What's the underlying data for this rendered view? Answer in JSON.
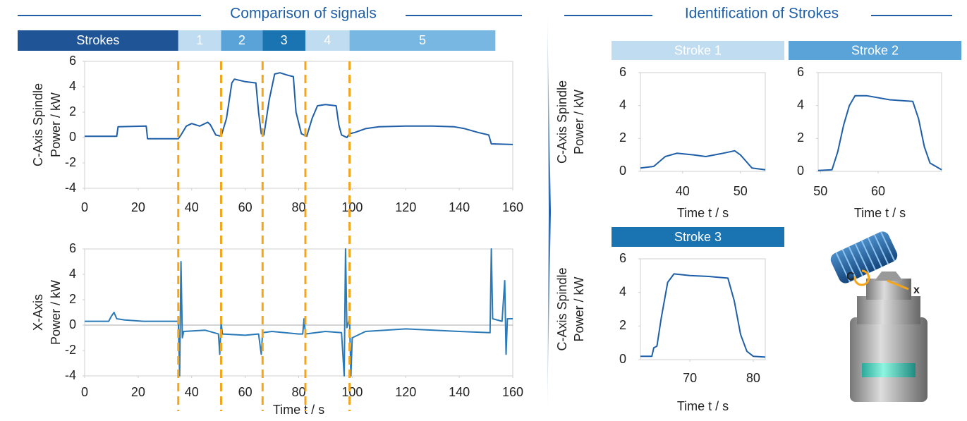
{
  "headings": [
    "Comparison of signals",
    "Identification of Strokes"
  ],
  "stroke_bar": {
    "label": "Strokes",
    "color": "#1f5597",
    "segments": [
      {
        "label": "1",
        "start": 35,
        "end": 51,
        "color": "#bfdcf1"
      },
      {
        "label": "2",
        "start": 51,
        "end": 66.5,
        "color": "#5aa3d9"
      },
      {
        "label": "3",
        "start": 66.5,
        "end": 82.5,
        "color": "#1a74b1"
      },
      {
        "label": "4",
        "start": 82.5,
        "end": 99,
        "color": "#bfdcf1"
      },
      {
        "label": "5",
        "start": 99,
        "end": 153.5,
        "color": "#78b7e2"
      }
    ]
  },
  "stroke_boundaries": {
    "values": [
      35,
      51,
      66.5,
      82.5,
      99
    ],
    "color": "#f4a51c"
  },
  "chart_data": [
    {
      "type": "line",
      "ylabel": [
        "C-Axis Spindle",
        "Power / kW"
      ],
      "xlim": [
        0,
        160
      ],
      "ylim": [
        -4,
        6
      ],
      "xticks": [
        0,
        20,
        40,
        60,
        80,
        100,
        120,
        140,
        160
      ],
      "yticks": [
        -4,
        -2,
        0,
        2,
        4,
        6
      ],
      "color": "#1f5fa8",
      "x": [
        0,
        12,
        12.5,
        23,
        23.5,
        35,
        36,
        38,
        40,
        43,
        46,
        47,
        49,
        51,
        53,
        55,
        56,
        60,
        64,
        65,
        66,
        67,
        69,
        71,
        73,
        76,
        78,
        79,
        81,
        83,
        85,
        87,
        90,
        94,
        95,
        96,
        97,
        98,
        99,
        101,
        105,
        110,
        120,
        130,
        138,
        142,
        147,
        151,
        152,
        160
      ],
      "values": [
        0.1,
        0.1,
        0.85,
        0.9,
        -0.1,
        -0.1,
        0.2,
        0.9,
        1.1,
        0.9,
        1.2,
        1.0,
        0.2,
        0.1,
        1.5,
        4.3,
        4.6,
        4.4,
        4.3,
        2.0,
        0.3,
        0.2,
        3.0,
        5.0,
        5.1,
        4.9,
        4.8,
        2.0,
        0.3,
        0.1,
        1.5,
        2.5,
        2.6,
        2.5,
        1.0,
        0.2,
        0.1,
        0,
        0.3,
        0.4,
        0.7,
        0.85,
        0.9,
        0.9,
        0.85,
        0.7,
        0.4,
        0.2,
        -0.5,
        -0.55
      ]
    },
    {
      "type": "line",
      "ylabel": [
        "X-Axis",
        "Power / kW"
      ],
      "xlabel": "Time t / s",
      "xlim": [
        0,
        160
      ],
      "ylim": [
        -4,
        6
      ],
      "xticks": [
        0,
        20,
        40,
        60,
        80,
        100,
        120,
        140,
        160
      ],
      "yticks": [
        -4,
        -2,
        0,
        2,
        4,
        6
      ],
      "color": "#2a7ab8",
      "x": [
        0,
        9,
        10,
        11,
        12,
        15,
        22,
        35,
        35.5,
        36,
        36.5,
        37,
        45,
        50,
        50.5,
        51,
        51.5,
        60,
        65,
        66,
        66.5,
        70,
        80,
        81.5,
        82,
        82.5,
        90,
        96,
        97,
        97.5,
        98,
        99,
        99.5,
        100,
        105,
        120,
        140,
        151.5,
        152,
        152.5,
        156,
        157,
        157.5,
        158,
        160
      ],
      "values": [
        0.3,
        0.3,
        0.7,
        1.0,
        0.5,
        0.4,
        0.3,
        0.3,
        -4,
        5,
        -1,
        -0.5,
        -0.4,
        -0.7,
        -2.3,
        0.2,
        -0.7,
        -0.8,
        -0.7,
        -2.3,
        -0.6,
        -0.5,
        -0.7,
        -0.7,
        0.5,
        -0.7,
        -0.5,
        -0.6,
        -4,
        6,
        -0.2,
        0.5,
        -4,
        -1.0,
        -0.5,
        -0.3,
        -0.5,
        -0.6,
        6,
        0.5,
        0.3,
        3.5,
        -2.3,
        0.5,
        0.5
      ]
    },
    {
      "type": "line",
      "title": "Stroke 1",
      "title_color": "#bfdcf1",
      "ylabel": [
        "C-Axis Spindle",
        "Power / kW"
      ],
      "xlabel": "Time t / s",
      "xlim": [
        32.7,
        54.3
      ],
      "ylim": [
        0,
        6
      ],
      "xticks": [
        40,
        50
      ],
      "yticks": [
        0,
        2,
        4,
        6
      ],
      "color": "#1f5fa8",
      "x": [
        32.7,
        35,
        36,
        37,
        39,
        42,
        44,
        47,
        49,
        50,
        51,
        52,
        54.3
      ],
      "values": [
        0.2,
        0.3,
        0.6,
        0.9,
        1.1,
        1.0,
        0.9,
        1.1,
        1.25,
        1.0,
        0.6,
        0.2,
        0.1
      ]
    },
    {
      "type": "line",
      "title": "Stroke 2",
      "title_color": "#5aa3d9",
      "xlabel": "Time t / s",
      "xlim": [
        49.6,
        71
      ],
      "ylim": [
        0,
        6
      ],
      "xticks": [
        50,
        60
      ],
      "yticks": [
        0,
        2,
        4,
        6
      ],
      "color": "#1f5fa8",
      "x": [
        49.6,
        52,
        53,
        54,
        55,
        56,
        58,
        62,
        66,
        67,
        68,
        69,
        71
      ],
      "values": [
        0.05,
        0.1,
        1.2,
        2.8,
        4.0,
        4.6,
        4.6,
        4.35,
        4.25,
        3.2,
        1.5,
        0.5,
        0.1
      ]
    },
    {
      "type": "line",
      "title": "Stroke 3",
      "title_color": "#1a74b1",
      "ylabel": [
        "C-Axis Spindle",
        "Power / kW"
      ],
      "xlabel": "Time t / s",
      "xlim": [
        62.2,
        81.9
      ],
      "ylim": [
        0,
        6
      ],
      "xticks": [
        70,
        80
      ],
      "yticks": [
        0,
        2,
        4,
        6
      ],
      "color": "#1f5fa8",
      "x": [
        62.2,
        64,
        64.3,
        64.8,
        65.5,
        66.5,
        67.5,
        70,
        73,
        76,
        77,
        78,
        79,
        80,
        81.9
      ],
      "values": [
        0.2,
        0.2,
        0.7,
        0.8,
        2.5,
        4.6,
        5.1,
        5.0,
        4.95,
        4.85,
        3.5,
        1.5,
        0.5,
        0.2,
        0.15
      ]
    }
  ],
  "illustration": {
    "labels": [
      "C",
      "x"
    ]
  }
}
